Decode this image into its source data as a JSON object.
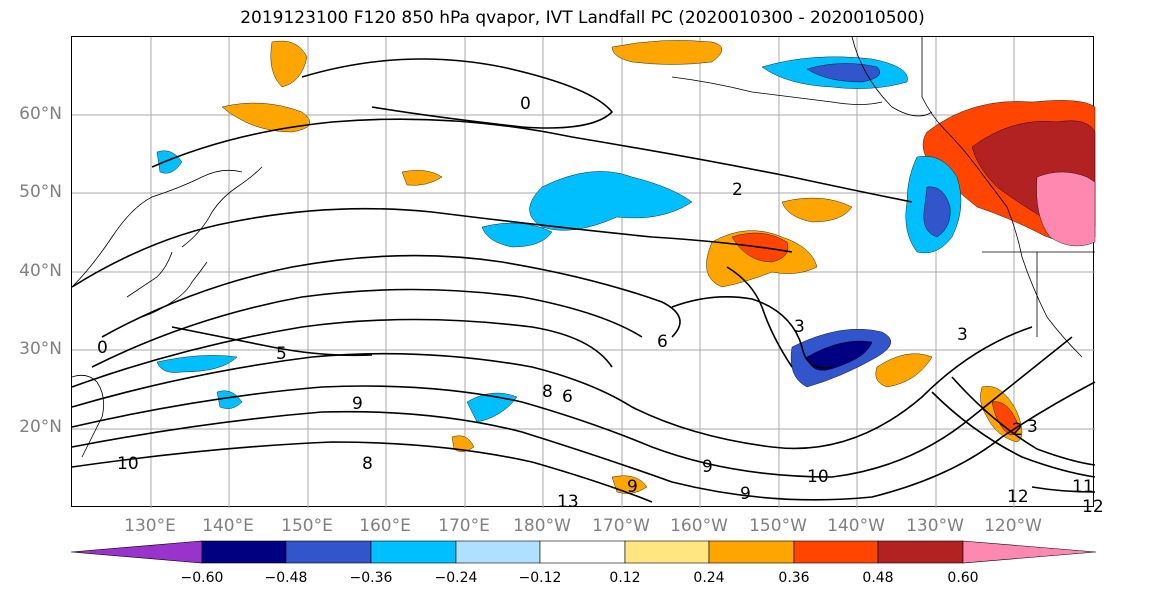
{
  "title": "2019123100 F120 850 hPa qvapor, IVT Landfall PC (2020010300 - 2020010500)",
  "map": {
    "lat_labels": [
      "60°N",
      "50°N",
      "40°N",
      "30°N",
      "20°N"
    ],
    "lon_labels": [
      "130°E",
      "140°E",
      "150°E",
      "160°E",
      "170°E",
      "180°W",
      "170°W",
      "160°W",
      "150°W",
      "140°W",
      "130°W",
      "120°W"
    ],
    "contour_labels": [
      "0",
      "2",
      "3",
      "5",
      "6",
      "9",
      "9",
      "10",
      "10",
      "11",
      "12",
      "13",
      "6",
      "8",
      "3",
      "9",
      "0",
      "2",
      "3",
      "9",
      "8",
      "12"
    ]
  },
  "colorbar": {
    "colors": [
      "#9933cc",
      "#000080",
      "#3355cc",
      "#00bfff",
      "#b0e0ff",
      "#ffffff",
      "#ffe680",
      "#ffa500",
      "#ff4500",
      "#b22222",
      "#ff88b0"
    ],
    "tick_labels": [
      "−0.60",
      "−0.48",
      "−0.36",
      "−0.24",
      "−0.12",
      "0.12",
      "0.24",
      "0.36",
      "0.48",
      "0.60"
    ]
  }
}
